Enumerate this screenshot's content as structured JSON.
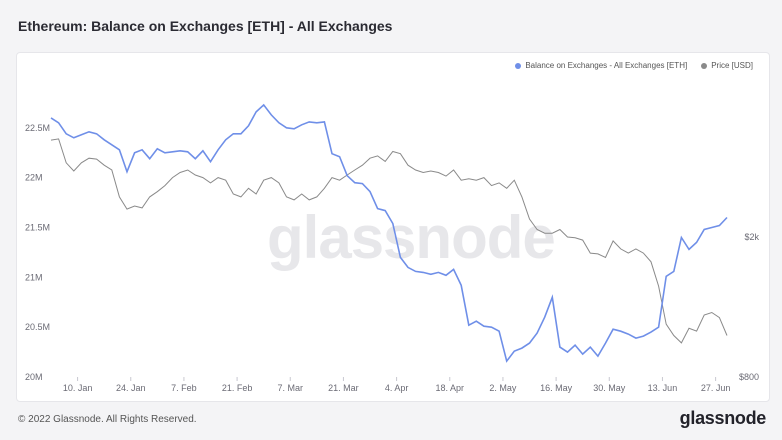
{
  "header": {
    "title": "Ethereum: Balance on Exchanges [ETH] - All Exchanges"
  },
  "footer": {
    "copyright": "© 2022 Glassnode. All Rights Reserved.",
    "logo": "glassnode"
  },
  "watermark": "glassnode",
  "chart_data": {
    "type": "line",
    "title": "Ethereum: Balance on Exchanges [ETH] - All Exchanges",
    "x_tick_labels": [
      "10. Jan",
      "24. Jan",
      "7. Feb",
      "21. Feb",
      "7. Mar",
      "21. Mar",
      "4. Apr",
      "18. Apr",
      "2. May",
      "16. May",
      "30. May",
      "13. Jun",
      "27. Jun"
    ],
    "y_left_tick_labels": [
      "20M",
      "20.5M",
      "21M",
      "21.5M",
      "22M",
      "22.5M"
    ],
    "y_left_ticks": [
      20000000,
      20500000,
      21000000,
      21500000,
      22000000,
      22500000
    ],
    "y_left_range": [
      20000000,
      23000000
    ],
    "y_right_tick_labels": [
      "$800",
      "$2k"
    ],
    "y_right_scale": "log",
    "legend_position": "top-right",
    "grid": false,
    "colors": {
      "balance": "#6f8fe8",
      "price": "#8a8a8a"
    },
    "series": [
      {
        "name": "Balance on Exchanges - All Exchanges [ETH]",
        "axis": "left",
        "x": [
          "2022-01-03",
          "2022-01-05",
          "2022-01-07",
          "2022-01-09",
          "2022-01-11",
          "2022-01-13",
          "2022-01-15",
          "2022-01-17",
          "2022-01-19",
          "2022-01-21",
          "2022-01-23",
          "2022-01-25",
          "2022-01-27",
          "2022-01-29",
          "2022-01-31",
          "2022-02-02",
          "2022-02-04",
          "2022-02-06",
          "2022-02-08",
          "2022-02-10",
          "2022-02-12",
          "2022-02-14",
          "2022-02-16",
          "2022-02-18",
          "2022-02-20",
          "2022-02-22",
          "2022-02-24",
          "2022-02-26",
          "2022-02-28",
          "2022-03-02",
          "2022-03-04",
          "2022-03-06",
          "2022-03-08",
          "2022-03-10",
          "2022-03-12",
          "2022-03-14",
          "2022-03-16",
          "2022-03-18",
          "2022-03-20",
          "2022-03-22",
          "2022-03-24",
          "2022-03-26",
          "2022-03-28",
          "2022-03-30",
          "2022-04-01",
          "2022-04-03",
          "2022-04-05",
          "2022-04-07",
          "2022-04-09",
          "2022-04-11",
          "2022-04-13",
          "2022-04-15",
          "2022-04-17",
          "2022-04-19",
          "2022-04-21",
          "2022-04-23",
          "2022-04-25",
          "2022-04-27",
          "2022-04-29",
          "2022-05-01",
          "2022-05-03",
          "2022-05-05",
          "2022-05-07",
          "2022-05-09",
          "2022-05-11",
          "2022-05-13",
          "2022-05-15",
          "2022-05-17",
          "2022-05-19",
          "2022-05-21",
          "2022-05-23",
          "2022-05-25",
          "2022-05-27",
          "2022-05-29",
          "2022-05-31",
          "2022-06-02",
          "2022-06-04",
          "2022-06-06",
          "2022-06-08",
          "2022-06-10",
          "2022-06-12",
          "2022-06-14",
          "2022-06-16",
          "2022-06-18",
          "2022-06-20",
          "2022-06-22",
          "2022-06-24",
          "2022-06-26",
          "2022-06-28",
          "2022-06-30"
        ],
        "values": [
          22600000,
          22550000,
          22440000,
          22400000,
          22430000,
          22460000,
          22440000,
          22380000,
          22330000,
          22280000,
          22060000,
          22250000,
          22280000,
          22190000,
          22290000,
          22250000,
          22260000,
          22270000,
          22260000,
          22190000,
          22270000,
          22160000,
          22280000,
          22380000,
          22440000,
          22440000,
          22520000,
          22660000,
          22730000,
          22630000,
          22550000,
          22500000,
          22490000,
          22530000,
          22560000,
          22550000,
          22560000,
          22240000,
          22210000,
          22020000,
          21950000,
          21940000,
          21860000,
          21690000,
          21670000,
          21540000,
          21200000,
          21100000,
          21060000,
          21050000,
          21030000,
          21050000,
          21020000,
          21080000,
          20920000,
          20520000,
          20560000,
          20510000,
          20500000,
          20460000,
          20160000,
          20260000,
          20290000,
          20340000,
          20440000,
          20600000,
          20800000,
          20300000,
          20250000,
          20320000,
          20230000,
          20300000,
          20210000,
          20340000,
          20480000,
          20460000,
          20430000,
          20390000,
          20410000,
          20450000,
          20500000,
          21010000,
          21060000,
          21400000,
          21280000,
          21350000,
          21480000,
          21500000,
          21520000,
          21600000
        ]
      },
      {
        "name": "Price [USD]",
        "axis": "right",
        "x": [
          "2022-01-03",
          "2022-01-05",
          "2022-01-07",
          "2022-01-09",
          "2022-01-11",
          "2022-01-13",
          "2022-01-15",
          "2022-01-17",
          "2022-01-19",
          "2022-01-21",
          "2022-01-23",
          "2022-01-25",
          "2022-01-27",
          "2022-01-29",
          "2022-01-31",
          "2022-02-02",
          "2022-02-04",
          "2022-02-06",
          "2022-02-08",
          "2022-02-10",
          "2022-02-12",
          "2022-02-14",
          "2022-02-16",
          "2022-02-18",
          "2022-02-20",
          "2022-02-22",
          "2022-02-24",
          "2022-02-26",
          "2022-02-28",
          "2022-03-02",
          "2022-03-04",
          "2022-03-06",
          "2022-03-08",
          "2022-03-10",
          "2022-03-12",
          "2022-03-14",
          "2022-03-16",
          "2022-03-18",
          "2022-03-20",
          "2022-03-22",
          "2022-03-24",
          "2022-03-26",
          "2022-03-28",
          "2022-03-30",
          "2022-04-01",
          "2022-04-03",
          "2022-04-05",
          "2022-04-07",
          "2022-04-09",
          "2022-04-11",
          "2022-04-13",
          "2022-04-15",
          "2022-04-17",
          "2022-04-19",
          "2022-04-21",
          "2022-04-23",
          "2022-04-25",
          "2022-04-27",
          "2022-04-29",
          "2022-05-01",
          "2022-05-03",
          "2022-05-05",
          "2022-05-07",
          "2022-05-09",
          "2022-05-11",
          "2022-05-13",
          "2022-05-15",
          "2022-05-17",
          "2022-05-19",
          "2022-05-21",
          "2022-05-23",
          "2022-05-25",
          "2022-05-27",
          "2022-05-29",
          "2022-05-31",
          "2022-06-02",
          "2022-06-04",
          "2022-06-06",
          "2022-06-08",
          "2022-06-10",
          "2022-06-12",
          "2022-06-14",
          "2022-06-16",
          "2022-06-18",
          "2022-06-20",
          "2022-06-22",
          "2022-06-24",
          "2022-06-26",
          "2022-06-28",
          "2022-06-30"
        ],
        "values": [
          3770,
          3800,
          3250,
          3080,
          3250,
          3350,
          3330,
          3200,
          3100,
          2600,
          2400,
          2450,
          2420,
          2600,
          2690,
          2800,
          2950,
          3050,
          3100,
          3000,
          2950,
          2850,
          2950,
          2900,
          2650,
          2600,
          2750,
          2650,
          2900,
          2950,
          2850,
          2600,
          2550,
          2650,
          2550,
          2600,
          2750,
          2950,
          2900,
          3000,
          3100,
          3200,
          3350,
          3400,
          3280,
          3500,
          3450,
          3200,
          3100,
          3050,
          3080,
          3050,
          2980,
          3100,
          2900,
          2930,
          2900,
          2950,
          2800,
          2850,
          2750,
          2900,
          2600,
          2250,
          2100,
          2050,
          2050,
          2100,
          2000,
          1990,
          1960,
          1800,
          1790,
          1750,
          1950,
          1850,
          1800,
          1850,
          1800,
          1700,
          1450,
          1130,
          1050,
          1000,
          1100,
          1080,
          1200,
          1220,
          1180,
          1050
        ]
      }
    ]
  }
}
